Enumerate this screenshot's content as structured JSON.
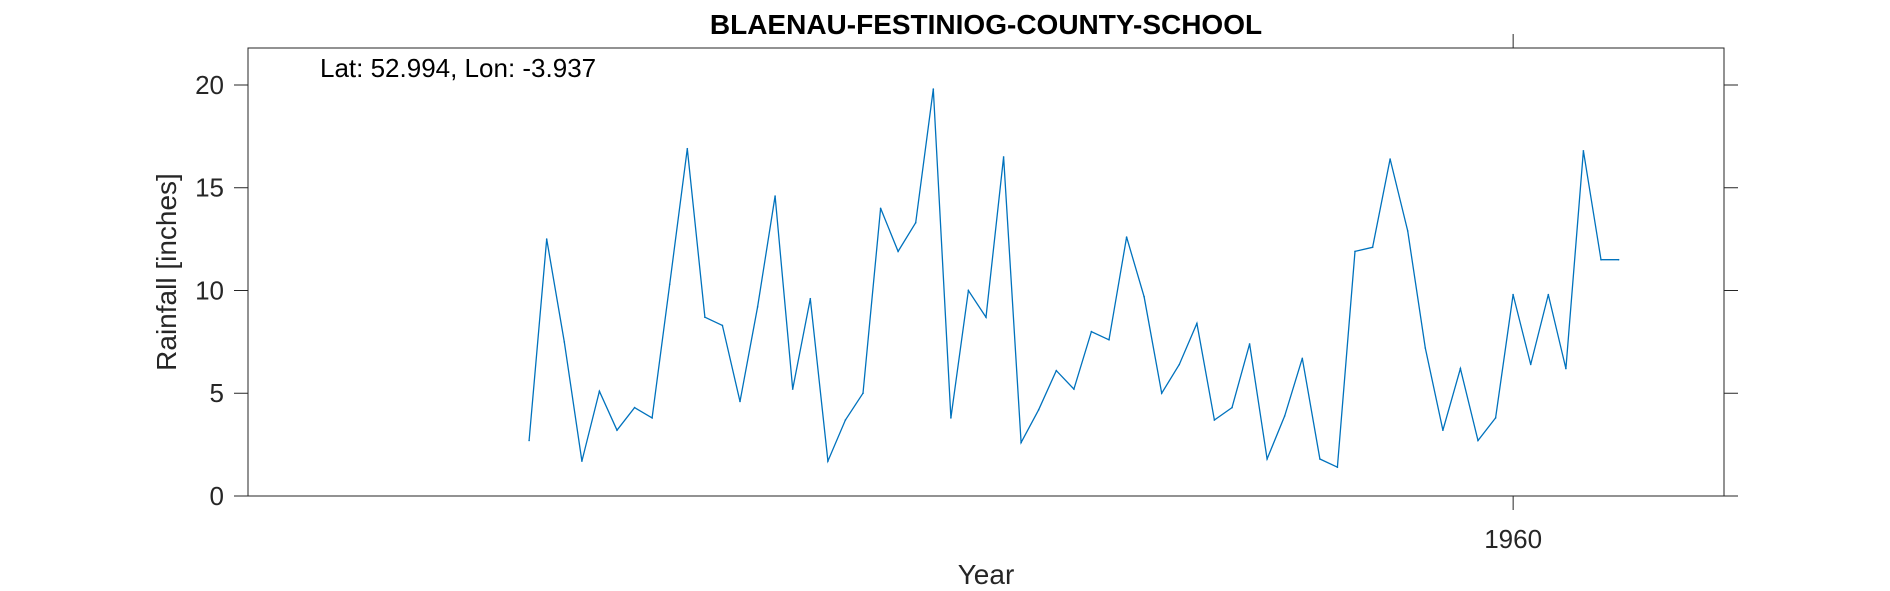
{
  "chart_data": {
    "type": "line",
    "title": "BLAENAU-FESTINIOG-COUNTY-SCHOOL",
    "xlabel": "Year",
    "ylabel": "Rainfall [inches]",
    "annotation": "Lat: 52.994, Lon: -3.937",
    "xlim": [
      1888,
      1972
    ],
    "ylim": [
      0,
      21.8
    ],
    "xticks": [
      1960
    ],
    "xtick_labels": [
      "1960"
    ],
    "yticks": [
      0,
      5,
      10,
      15,
      20
    ],
    "ytick_labels": [
      "0",
      "5",
      "10",
      "15",
      "20"
    ],
    "grid": false,
    "legend": "none",
    "series_color": "#0072BD",
    "series": [
      {
        "x": [
          1904,
          1905,
          1906,
          1907,
          1908,
          1909,
          1910,
          1911,
          1912,
          1913,
          1914,
          1915,
          1916,
          1917,
          1918,
          1919,
          1920,
          1921,
          1922,
          1923,
          1924,
          1925,
          1926,
          1927,
          1928,
          1929,
          1930,
          1931,
          1932,
          1933,
          1934,
          1935,
          1936,
          1937,
          1938,
          1939,
          1940,
          1941,
          1942,
          1943,
          1944,
          1945,
          1946,
          1947,
          1948,
          1949,
          1950,
          1951,
          1952,
          1953,
          1954,
          1955,
          1956,
          1957,
          1958,
          1959,
          1960,
          1961,
          1962,
          1963,
          1964,
          1965,
          1966
        ],
        "values": [
          2.7,
          12.5,
          7.5,
          1.7,
          5.1,
          3.2,
          4.3,
          3.8,
          10.3,
          16.9,
          8.7,
          8.3,
          4.6,
          9.2,
          14.6,
          5.2,
          9.6,
          1.7,
          3.7,
          5.0,
          14.0,
          11.9,
          13.3,
          19.8,
          3.8,
          10.0,
          8.7,
          16.5,
          2.6,
          4.2,
          6.1,
          5.2,
          8.0,
          7.6,
          12.6,
          9.7,
          5.0,
          6.4,
          8.4,
          3.7,
          4.3,
          7.4,
          1.8,
          3.9,
          6.7,
          1.8,
          1.4,
          11.9,
          12.1,
          16.4,
          12.9,
          7.2,
          3.2,
          6.2,
          2.7,
          3.8,
          9.8,
          6.4,
          9.8,
          6.2,
          16.8,
          11.5,
          11.5
        ]
      }
    ]
  }
}
